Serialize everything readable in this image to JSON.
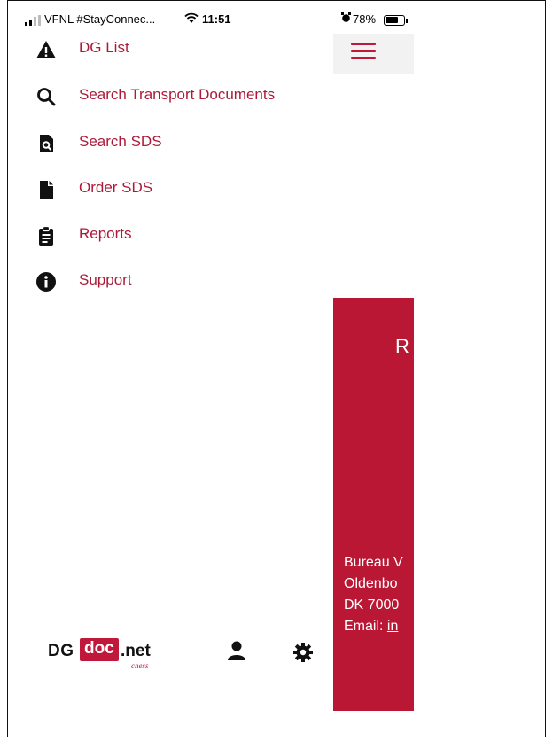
{
  "status_bar": {
    "carrier": "VFNL #StayConnec...",
    "time": "11:51",
    "battery": "78%",
    "battery_level": 0.78
  },
  "menu": {
    "items": [
      {
        "label": "DG List",
        "icon": "warning-triangle-icon"
      },
      {
        "label": "Search Transport Documents",
        "icon": "search-icon"
      },
      {
        "label": "Search SDS",
        "icon": "file-search-icon"
      },
      {
        "label": "Order SDS",
        "icon": "file-icon"
      },
      {
        "label": "Reports",
        "icon": "clipboard-list-icon"
      },
      {
        "label": "Support",
        "icon": "info-circle-icon"
      }
    ]
  },
  "background": {
    "heading_partial": "R",
    "address_lines": [
      "Bureau V",
      "Oldenbo",
      "DK 7000"
    ],
    "email_label": "Email:",
    "email_partial": "in"
  },
  "logo": {
    "dg": "DG",
    "doc": "doc",
    "net": ".net",
    "chess": "chess"
  },
  "colors": {
    "accent": "#ad1a38",
    "panel": "#ba1734",
    "topbar": "#f2f2f2"
  }
}
